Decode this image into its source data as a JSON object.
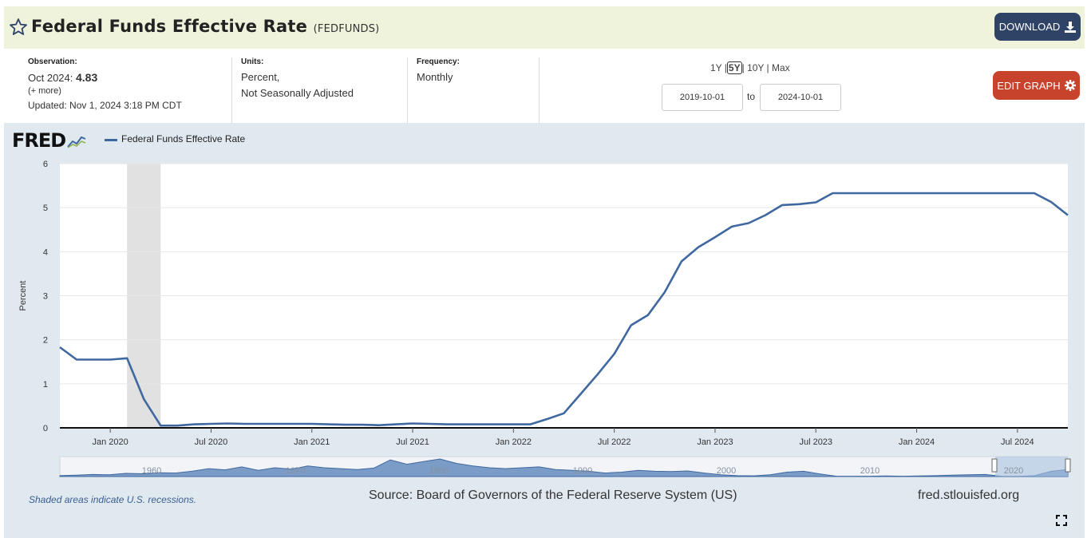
{
  "header": {
    "title": "Federal Funds Effective Rate",
    "series_id": "(FEDFUNDS)",
    "download_label": "DOWNLOAD",
    "background_color": "#f0f3dc"
  },
  "meta": {
    "observation_label": "Observation:",
    "observation_date": "Oct 2024:",
    "observation_value": "4.83",
    "more_link": "(+ more)",
    "updated": "Updated: Nov 1, 2024 3:18 PM CDT",
    "units_label": "Units:",
    "units_line1": "Percent,",
    "units_line2": "Not Seasonally Adjusted",
    "frequency_label": "Frequency:",
    "frequency_value": "Monthly"
  },
  "controls": {
    "ranges": [
      "1Y",
      "5Y",
      "10Y",
      "Max"
    ],
    "selected_range": "5Y",
    "start_date": "2019-10-01",
    "end_date": "2024-10-01",
    "to_label": "to",
    "edit_label": "EDIT GRAPH"
  },
  "chart_panel": {
    "logo": "FRED",
    "legend_label": "Federal Funds Effective Rate",
    "note": "Shaded areas indicate U.S. recessions.",
    "source": "Source: Board of Governors of the Federal Reserve System (US)",
    "site": "fred.stlouisfed.org"
  },
  "chart_data": {
    "type": "line",
    "ylabel": "Percent",
    "xlabel": "",
    "ylim": [
      0,
      6
    ],
    "yticks": [
      "0",
      "1",
      "2",
      "3",
      "4",
      "5",
      "6"
    ],
    "xtick_labels": [
      "Jan 2020",
      "Jul 2020",
      "Jan 2021",
      "Jul 2021",
      "Jan 2022",
      "Jul 2022",
      "Jan 2023",
      "Jul 2023",
      "Jan 2024",
      "Jul 2024"
    ],
    "xtick_dates": [
      "2020-01",
      "2020-07",
      "2021-01",
      "2021-07",
      "2022-01",
      "2022-07",
      "2023-01",
      "2023-07",
      "2024-01",
      "2024-07"
    ],
    "xlim": [
      "2019-10",
      "2024-10"
    ],
    "grid": true,
    "legend_position": "top-left",
    "line_color": "#4068a0",
    "recessions": [
      {
        "start": "2020-02",
        "end": "2020-04"
      }
    ],
    "series": [
      {
        "name": "Federal Funds Effective Rate",
        "x": [
          "2019-10",
          "2019-11",
          "2019-12",
          "2020-01",
          "2020-02",
          "2020-03",
          "2020-04",
          "2020-05",
          "2020-06",
          "2020-07",
          "2020-08",
          "2020-09",
          "2020-10",
          "2020-11",
          "2020-12",
          "2021-01",
          "2021-02",
          "2021-03",
          "2021-04",
          "2021-05",
          "2021-06",
          "2021-07",
          "2021-08",
          "2021-09",
          "2021-10",
          "2021-11",
          "2021-12",
          "2022-01",
          "2022-02",
          "2022-03",
          "2022-04",
          "2022-05",
          "2022-06",
          "2022-07",
          "2022-08",
          "2022-09",
          "2022-10",
          "2022-11",
          "2022-12",
          "2023-01",
          "2023-02",
          "2023-03",
          "2023-04",
          "2023-05",
          "2023-06",
          "2023-07",
          "2023-08",
          "2023-09",
          "2023-10",
          "2023-11",
          "2023-12",
          "2024-01",
          "2024-02",
          "2024-03",
          "2024-04",
          "2024-05",
          "2024-06",
          "2024-07",
          "2024-08",
          "2024-09",
          "2024-10"
        ],
        "y": [
          1.83,
          1.55,
          1.55,
          1.55,
          1.58,
          0.65,
          0.05,
          0.05,
          0.08,
          0.09,
          0.1,
          0.09,
          0.09,
          0.09,
          0.09,
          0.09,
          0.08,
          0.07,
          0.07,
          0.06,
          0.08,
          0.1,
          0.09,
          0.08,
          0.08,
          0.08,
          0.08,
          0.08,
          0.08,
          0.2,
          0.33,
          0.77,
          1.21,
          1.68,
          2.33,
          2.56,
          3.08,
          3.78,
          4.1,
          4.33,
          4.57,
          4.65,
          4.83,
          5.06,
          5.08,
          5.12,
          5.33,
          5.33,
          5.33,
          5.33,
          5.33,
          5.33,
          5.33,
          5.33,
          5.33,
          5.33,
          5.33,
          5.33,
          5.33,
          5.13,
          4.83
        ]
      }
    ],
    "navigator": {
      "labels": [
        "1960",
        "1970",
        "1980",
        "1990",
        "2000",
        "2010",
        "2020"
      ]
    }
  }
}
